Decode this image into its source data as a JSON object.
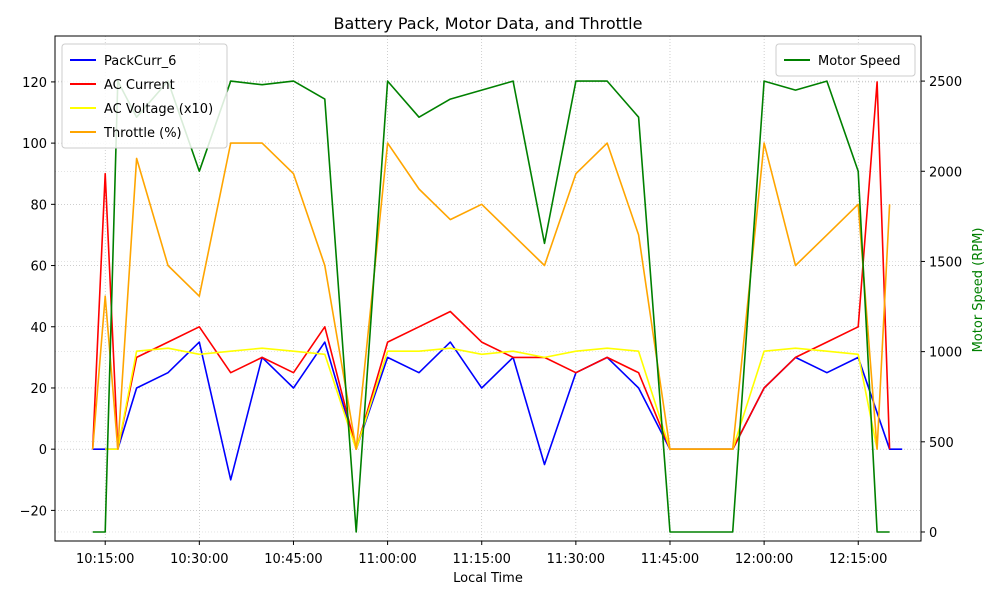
{
  "chart_data": {
    "type": "line",
    "title": "Battery Pack, Motor Data, and Throttle",
    "xlabel": "Local Time",
    "ylabel_left": "",
    "ylabel_right": "Motor Speed (RPM)",
    "ylabel_right_color": "#008000",
    "x_range": [
      "10:07:00",
      "12:25:00"
    ],
    "x_ticks": [
      "10:15:00",
      "10:30:00",
      "10:45:00",
      "11:00:00",
      "11:15:00",
      "11:30:00",
      "11:45:00",
      "12:00:00",
      "12:15:00"
    ],
    "ylim_left": [
      -30,
      135
    ],
    "yticks_left": [
      -20,
      0,
      20,
      40,
      60,
      80,
      100,
      120
    ],
    "ylim_right": [
      -50,
      2750
    ],
    "yticks_right": [
      0,
      500,
      1000,
      1500,
      2000,
      2500
    ],
    "grid": true,
    "legend_left": {
      "placement": "top-left",
      "entries": [
        "PackCurr_6",
        "AC Current",
        "AC Voltage (x10)",
        "Throttle (%)"
      ]
    },
    "legend_right": {
      "placement": "top-right",
      "entries": [
        "Motor Speed"
      ]
    },
    "series": [
      {
        "name": "PackCurr_6",
        "color": "#0000ff",
        "axis": "left",
        "x": [
          "10:13:00",
          "10:17:00",
          "10:20:00",
          "10:25:00",
          "10:30:00",
          "10:35:00",
          "10:40:00",
          "10:45:00",
          "10:50:00",
          "10:55:00",
          "11:00:00",
          "11:05:00",
          "11:10:00",
          "11:15:00",
          "11:20:00",
          "11:25:00",
          "11:30:00",
          "11:35:00",
          "11:40:00",
          "11:45:00",
          "11:50:00",
          "11:55:00",
          "12:00:00",
          "12:05:00",
          "12:10:00",
          "12:15:00",
          "12:20:00",
          "12:22:00"
        ],
        "y": [
          0,
          0,
          20,
          25,
          35,
          -10,
          30,
          20,
          35,
          0,
          30,
          25,
          35,
          20,
          30,
          -5,
          25,
          30,
          20,
          0,
          0,
          0,
          20,
          30,
          25,
          30,
          0,
          0
        ]
      },
      {
        "name": "AC Current",
        "color": "#ff0000",
        "axis": "left",
        "x": [
          "10:13:00",
          "10:15:00",
          "10:17:00",
          "10:20:00",
          "10:25:00",
          "10:30:00",
          "10:35:00",
          "10:40:00",
          "10:45:00",
          "10:50:00",
          "10:55:00",
          "11:00:00",
          "11:05:00",
          "11:10:00",
          "11:15:00",
          "11:20:00",
          "11:25:00",
          "11:30:00",
          "11:35:00",
          "11:40:00",
          "11:45:00",
          "11:50:00",
          "11:55:00",
          "12:00:00",
          "12:05:00",
          "12:10:00",
          "12:15:00",
          "12:18:00",
          "12:20:00"
        ],
        "y": [
          0,
          90,
          0,
          30,
          35,
          40,
          25,
          30,
          25,
          40,
          0,
          35,
          40,
          45,
          35,
          30,
          30,
          25,
          30,
          25,
          0,
          0,
          0,
          20,
          30,
          35,
          40,
          120,
          0
        ]
      },
      {
        "name": "AC Voltage (x10)",
        "color": "#ffff00",
        "axis": "left",
        "x": [
          "10:15:00",
          "10:17:00",
          "10:20:00",
          "10:25:00",
          "10:30:00",
          "10:35:00",
          "10:40:00",
          "10:45:00",
          "10:50:00",
          "10:55:00",
          "11:00:00",
          "11:05:00",
          "11:10:00",
          "11:15:00",
          "11:20:00",
          "11:25:00",
          "11:30:00",
          "11:35:00",
          "11:40:00",
          "11:45:00",
          "11:50:00",
          "11:55:00",
          "12:00:00",
          "12:05:00",
          "12:10:00",
          "12:15:00",
          "12:18:00"
        ],
        "y": [
          0,
          0,
          32,
          33,
          31,
          32,
          33,
          32,
          31,
          0,
          32,
          32,
          33,
          31,
          32,
          30,
          32,
          33,
          32,
          0,
          0,
          0,
          32,
          33,
          32,
          31,
          0
        ]
      },
      {
        "name": "Throttle (%)",
        "color": "#ffa500",
        "axis": "left",
        "x": [
          "10:13:00",
          "10:15:00",
          "10:17:00",
          "10:20:00",
          "10:25:00",
          "10:30:00",
          "10:35:00",
          "10:40:00",
          "10:45:00",
          "10:50:00",
          "10:55:00",
          "11:00:00",
          "11:05:00",
          "11:10:00",
          "11:15:00",
          "11:20:00",
          "11:25:00",
          "11:30:00",
          "11:35:00",
          "11:40:00",
          "11:45:00",
          "11:50:00",
          "11:55:00",
          "12:00:00",
          "12:05:00",
          "12:10:00",
          "12:15:00",
          "12:18:00",
          "12:20:00"
        ],
        "y": [
          0,
          50,
          0,
          95,
          60,
          50,
          100,
          100,
          90,
          60,
          0,
          100,
          85,
          75,
          80,
          70,
          60,
          90,
          100,
          70,
          0,
          0,
          0,
          100,
          60,
          70,
          80,
          0,
          80
        ]
      },
      {
        "name": "Motor Speed",
        "color": "#008000",
        "axis": "right",
        "x": [
          "10:13:00",
          "10:15:00",
          "10:17:00",
          "10:20:00",
          "10:25:00",
          "10:30:00",
          "10:35:00",
          "10:40:00",
          "10:45:00",
          "10:50:00",
          "10:55:00",
          "11:00:00",
          "11:05:00",
          "11:10:00",
          "11:15:00",
          "11:20:00",
          "11:25:00",
          "11:30:00",
          "11:35:00",
          "11:40:00",
          "11:45:00",
          "11:50:00",
          "11:55:00",
          "12:00:00",
          "12:05:00",
          "12:10:00",
          "12:15:00",
          "12:18:00",
          "12:20:00"
        ],
        "y": [
          0,
          0,
          2500,
          2300,
          2500,
          2000,
          2500,
          2480,
          2500,
          2400,
          0,
          2500,
          2300,
          2400,
          2450,
          2500,
          1600,
          2500,
          2500,
          2300,
          0,
          0,
          0,
          2500,
          2450,
          2500,
          2000,
          0,
          0
        ]
      }
    ]
  }
}
